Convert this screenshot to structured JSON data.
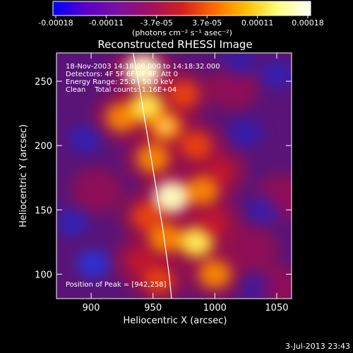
{
  "colorbar": {
    "tick_labels": [
      "-0.00018",
      "-0.00011",
      "-3.7e-05",
      "3.7e-05",
      "0.00011",
      "0.00018"
    ],
    "range": [
      -0.00018,
      0.00018
    ],
    "units_label": "(photons cm⁻² s⁻¹ asec⁻²)",
    "colors": [
      "#0000ff",
      "#5a00c8",
      "#7a10a0",
      "#a01060",
      "#d02020",
      "#ff6a00",
      "#ffc000",
      "#ffff80",
      "#ffffff"
    ]
  },
  "chart_data": {
    "type": "heatmap",
    "title": "Reconstructed RHESSI Image",
    "xlabel": "Heliocentric X (arcsec)",
    "ylabel": "Heliocentric Y (arcsec)",
    "xlim": [
      872,
      1062
    ],
    "ylim": [
      81,
      272
    ],
    "x_ticks": [
      "900",
      "950",
      "1000",
      "1050"
    ],
    "y_ticks": [
      "100",
      "150",
      "200",
      "250"
    ],
    "peak_position": [
      942,
      258
    ],
    "limb_curve": [
      [
        934,
        272
      ],
      [
        940,
        240
      ],
      [
        946,
        205
      ],
      [
        952,
        170
      ],
      [
        958,
        135
      ],
      [
        963,
        100
      ],
      [
        965,
        81
      ]
    ],
    "hotspots": [
      {
        "x": 942,
        "y": 258,
        "intensity": 1.0
      },
      {
        "x": 925,
        "y": 222,
        "intensity": 0.7
      },
      {
        "x": 945,
        "y": 230,
        "intensity": 0.85
      },
      {
        "x": 960,
        "y": 215,
        "intensity": 0.8
      },
      {
        "x": 975,
        "y": 240,
        "intensity": 0.6
      },
      {
        "x": 985,
        "y": 200,
        "intensity": 0.65
      },
      {
        "x": 950,
        "y": 190,
        "intensity": 0.75
      },
      {
        "x": 965,
        "y": 160,
        "intensity": 0.95
      },
      {
        "x": 990,
        "y": 165,
        "intensity": 0.7
      },
      {
        "x": 945,
        "y": 145,
        "intensity": 0.6
      },
      {
        "x": 960,
        "y": 128,
        "intensity": 0.75
      },
      {
        "x": 985,
        "y": 125,
        "intensity": 0.85
      },
      {
        "x": 1000,
        "y": 140,
        "intensity": 0.5
      },
      {
        "x": 940,
        "y": 110,
        "intensity": 0.5
      },
      {
        "x": 955,
        "y": 95,
        "intensity": 0.55
      },
      {
        "x": 1000,
        "y": 100,
        "intensity": 0.7
      },
      {
        "x": 1005,
        "y": 180,
        "intensity": 0.4
      },
      {
        "x": 1030,
        "y": 120,
        "intensity": 0.35
      },
      {
        "x": 1055,
        "y": 160,
        "intensity": 0.35
      },
      {
        "x": 1050,
        "y": 90,
        "intensity": 0.3
      },
      {
        "x": 905,
        "y": 165,
        "intensity": 0.3
      },
      {
        "x": 1015,
        "y": 245,
        "intensity": 0.25
      }
    ],
    "coldspots": [
      {
        "x": 902,
        "y": 108,
        "intensity": -0.8
      },
      {
        "x": 885,
        "y": 140,
        "intensity": -0.45
      },
      {
        "x": 895,
        "y": 205,
        "intensity": -0.4
      },
      {
        "x": 1025,
        "y": 210,
        "intensity": -0.35
      },
      {
        "x": 1040,
        "y": 150,
        "intensity": -0.35
      },
      {
        "x": 1050,
        "y": 255,
        "intensity": -0.4
      },
      {
        "x": 1020,
        "y": 265,
        "intensity": -0.3
      },
      {
        "x": 1035,
        "y": 90,
        "intensity": -0.25
      }
    ]
  },
  "annotations": {
    "time_range": "18-Nov-2003 14:18:08.000 to 14:18:32.000",
    "detectors": "Detectors: 4F 5F 6F 7F 8F, Att 0",
    "energy_range": "Energy Range: 25.0 - 50.0 keV",
    "clean_counts": "Clean    Total counts: 1.16E+04",
    "peak_label": "Position of Peak = [942,258]"
  },
  "footer": {
    "timestamp": "3-Jul-2013 23:43"
  }
}
